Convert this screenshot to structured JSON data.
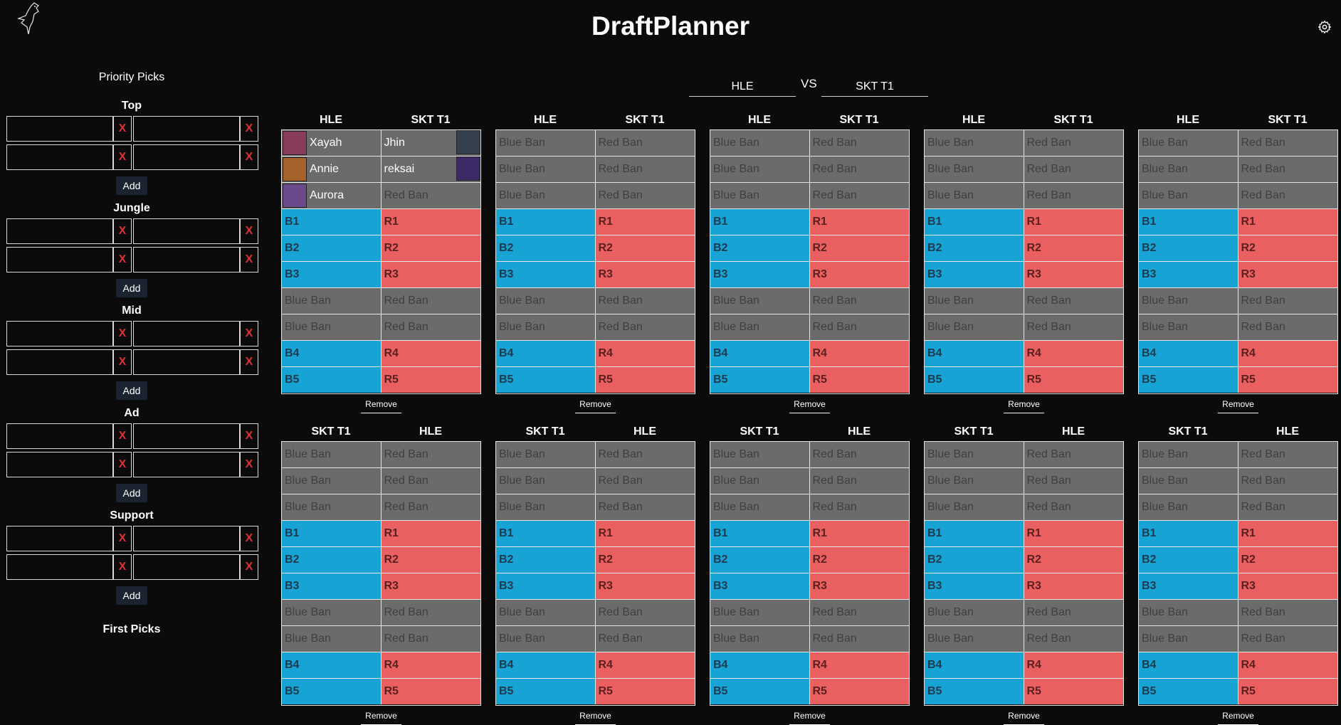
{
  "app": {
    "title": "DraftPlanner"
  },
  "icons": {
    "logo": "raven-logo-icon",
    "settings": "gear-icon",
    "remove_slot": "x-icon"
  },
  "colors": {
    "blue_side": "#17a3d4",
    "red_side": "#ea5f5f",
    "ban": "#6b6b6b",
    "remove_x": "#e3312f"
  },
  "sidebar": {
    "title": "Priority Picks",
    "roles": [
      {
        "label": "Top",
        "slots": [
          "",
          "",
          "",
          ""
        ],
        "add_label": "Add"
      },
      {
        "label": "Jungle",
        "slots": [
          "",
          "",
          "",
          ""
        ],
        "add_label": "Add"
      },
      {
        "label": "Mid",
        "slots": [
          "",
          "",
          "",
          ""
        ],
        "add_label": "Add"
      },
      {
        "label": "Ad",
        "slots": [
          "",
          "",
          "",
          ""
        ],
        "add_label": "Add"
      },
      {
        "label": "Support",
        "slots": [
          "",
          "",
          "",
          ""
        ],
        "add_label": "Add"
      }
    ],
    "remove_label": "X",
    "first_picks_title": "First Picks"
  },
  "matchup": {
    "team_a": "HLE",
    "vs": "VS",
    "team_b": "SKT T1"
  },
  "board_template": {
    "blue_ban": "Blue Ban",
    "red_ban": "Red Ban",
    "picks_blue_1": [
      "B1",
      "B2",
      "B3"
    ],
    "picks_red_1": [
      "R1",
      "R2",
      "R3"
    ],
    "picks_blue_2": [
      "B4",
      "B5"
    ],
    "picks_red_2": [
      "R4",
      "R5"
    ],
    "remove_label": "Remove"
  },
  "row1": {
    "left_team": "HLE",
    "right_team": "SKT T1",
    "boards": [
      {
        "blue_bans": [
          "Xayah",
          "Annie",
          "Aurora"
        ],
        "red_bans": [
          "Jhin",
          "reksai",
          ""
        ]
      },
      {
        "blue_bans": [
          "",
          "",
          ""
        ],
        "red_bans": [
          "",
          "",
          ""
        ]
      },
      {
        "blue_bans": [
          "",
          "",
          ""
        ],
        "red_bans": [
          "",
          "",
          ""
        ]
      },
      {
        "blue_bans": [
          "",
          "",
          ""
        ],
        "red_bans": [
          "",
          "",
          ""
        ]
      },
      {
        "blue_bans": [
          "",
          "",
          ""
        ],
        "red_bans": [
          "",
          "",
          ""
        ]
      }
    ]
  },
  "row2": {
    "left_team": "SKT T1",
    "right_team": "HLE",
    "boards": [
      {
        "blue_bans": [
          "",
          "",
          ""
        ],
        "red_bans": [
          "",
          "",
          ""
        ]
      },
      {
        "blue_bans": [
          "",
          "",
          ""
        ],
        "red_bans": [
          "",
          "",
          ""
        ]
      },
      {
        "blue_bans": [
          "",
          "",
          ""
        ],
        "red_bans": [
          "",
          "",
          ""
        ]
      },
      {
        "blue_bans": [
          "",
          "",
          ""
        ],
        "red_bans": [
          "",
          "",
          ""
        ]
      },
      {
        "blue_bans": [
          "",
          "",
          ""
        ],
        "red_bans": [
          "",
          "",
          ""
        ]
      }
    ]
  },
  "portraits": {
    "Xayah": "#8a3a5a",
    "Annie": "#a5622a",
    "Aurora": "#6a4a8a",
    "Jhin": "#35404f",
    "reksai": "#3c2a66"
  }
}
